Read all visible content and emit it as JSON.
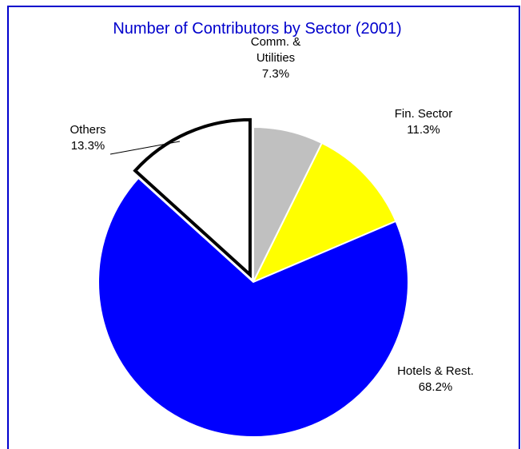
{
  "chart_data": {
    "type": "pie",
    "title": "Number of Contributors by Sector (2001)",
    "slices": [
      {
        "label": "Comm. & Utilities",
        "label_lines": [
          "Comm. &",
          "Utilities"
        ],
        "value_label": "7.3%",
        "value": 7.3,
        "color": "#c0c0c0"
      },
      {
        "label": "Fin. Sector",
        "label_lines": [
          "Fin. Sector"
        ],
        "value_label": "11.3%",
        "value": 11.3,
        "color": "#ffff00"
      },
      {
        "label": "Hotels & Rest.",
        "label_lines": [
          "Hotels & Rest."
        ],
        "value_label": "68.2%",
        "value": 68.2,
        "color": "#0000ff"
      },
      {
        "label": "Others",
        "label_lines": [
          "Others"
        ],
        "value_label": "13.3%",
        "value": 13.3,
        "color": "#ffffff",
        "exploded": true
      }
    ],
    "frame_color": "#0000cc"
  }
}
